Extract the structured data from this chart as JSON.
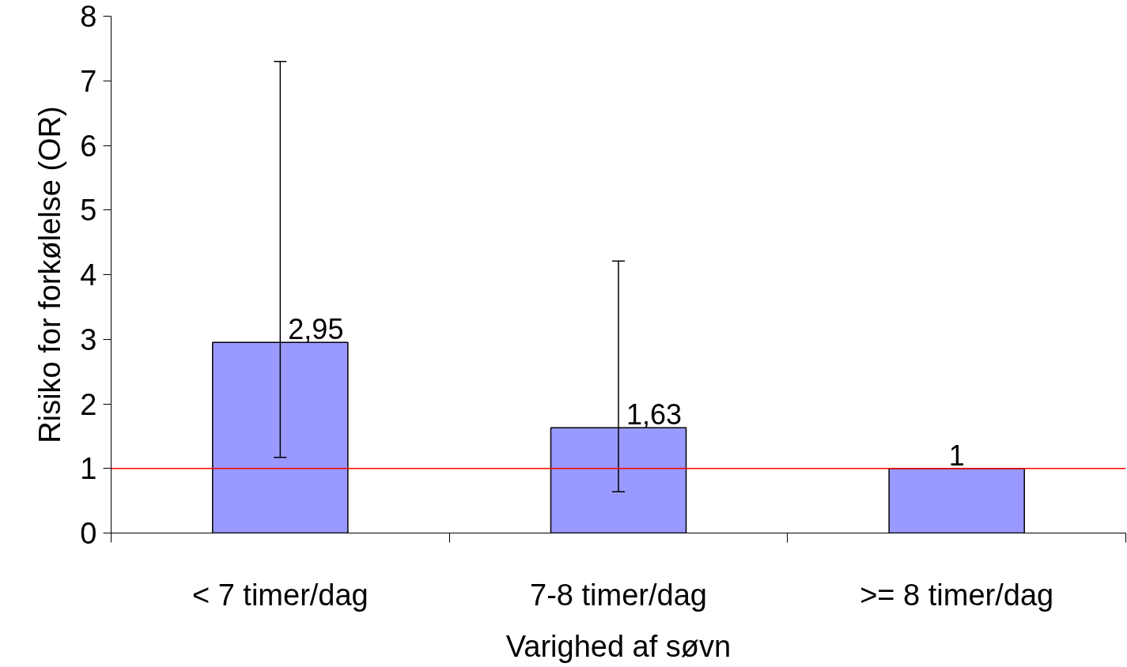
{
  "chart_data": {
    "type": "bar",
    "xlabel": "Varighed af søvn",
    "ylabel": "Risiko for forkølelse (OR)",
    "categories": [
      "< 7 timer/dag",
      "7-8 timer/dag",
      ">= 8 timer/dag"
    ],
    "values": [
      2.95,
      1.63,
      1
    ],
    "value_labels": [
      "2,95",
      "1,63",
      "1"
    ],
    "errors": [
      [
        1.17,
        7.3
      ],
      [
        0.64,
        4.21
      ],
      null
    ],
    "color": "#9999ff",
    "ylim": [
      0,
      8
    ],
    "yticks": [
      0,
      1,
      2,
      3,
      4,
      5,
      6,
      7,
      8
    ],
    "ref_lines": [
      {
        "axis": "y",
        "value": 1,
        "color": "#ff0000"
      }
    ],
    "grid": false
  }
}
